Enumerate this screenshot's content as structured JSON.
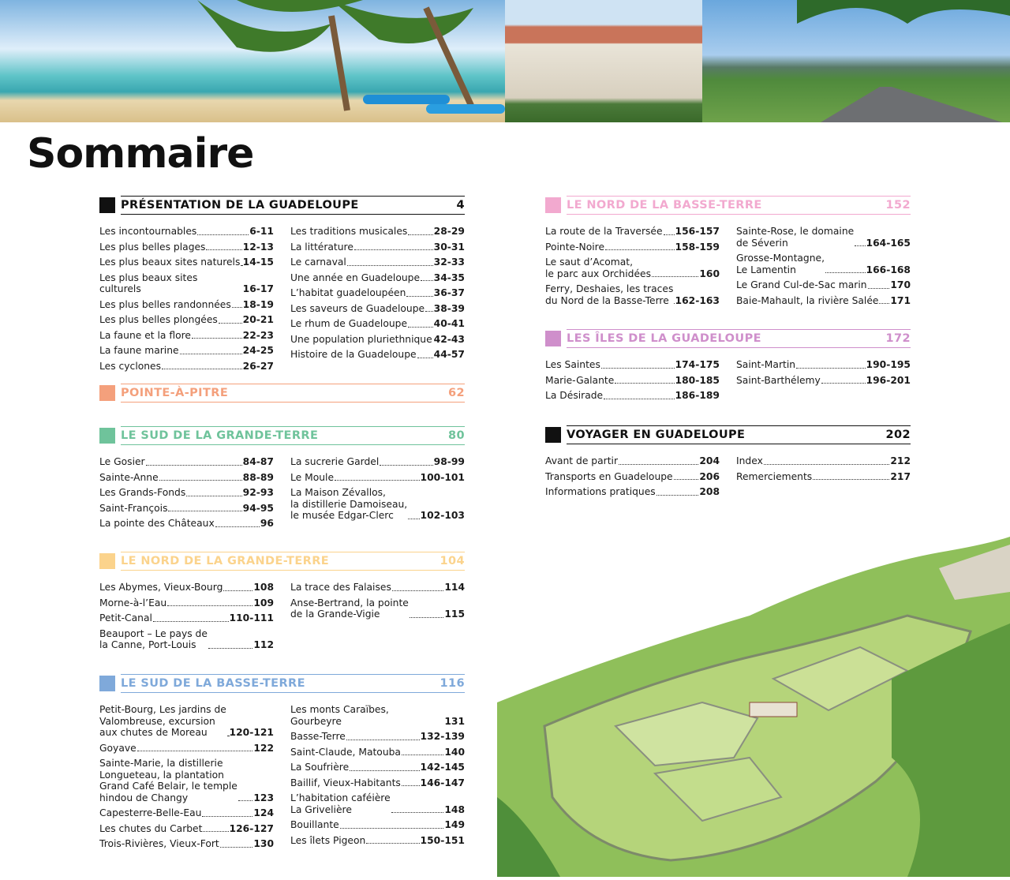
{
  "title": "Sommaire",
  "sections": [
    {
      "id": "presentation",
      "title": "PRÉSENTATION DE LA GUADELOUPE",
      "page": "4",
      "color": "#111111",
      "left": [
        {
          "t": "Les incontournables",
          "p": "6-11"
        },
        {
          "t": "Les plus belles plages",
          "p": "12-13"
        },
        {
          "t": "Les plus beaux sites naturels",
          "p": "14-15"
        },
        {
          "t": "Les plus beaux sites culturels",
          "p": "16-17"
        },
        {
          "t": "Les plus belles randonnées",
          "p": "18-19"
        },
        {
          "t": "Les plus belles plongées",
          "p": "20-21"
        },
        {
          "t": "La faune et la flore",
          "p": "22-23"
        },
        {
          "t": "La faune marine",
          "p": "24-25"
        },
        {
          "t": "Les cyclones",
          "p": "26-27"
        }
      ],
      "right": [
        {
          "t": "Les traditions musicales",
          "p": "28-29"
        },
        {
          "t": "La littérature",
          "p": "30-31"
        },
        {
          "t": "Le carnaval",
          "p": "32-33"
        },
        {
          "t": "Une année en Guadeloupe",
          "p": "34-35"
        },
        {
          "t": "L’habitat guadeloupéen",
          "p": "36-37"
        },
        {
          "t": "Les saveurs de Guadeloupe",
          "p": "38-39"
        },
        {
          "t": "Le rhum de Guadeloupe",
          "p": "40-41"
        },
        {
          "t": "Une population pluriethnique",
          "p": "42-43"
        },
        {
          "t": "Histoire de la Guadeloupe",
          "p": "44-57"
        }
      ]
    },
    {
      "id": "pointe-a-pitre",
      "title": "POINTE-À-PITRE",
      "page": "62",
      "color": "#f4a07c",
      "left": [],
      "right": []
    },
    {
      "id": "sud-grande-terre",
      "title": "LE SUD DE LA GRANDE-TERRE",
      "page": "80",
      "color": "#6fc39b",
      "left": [
        {
          "t": "Le Gosier",
          "p": "84-87"
        },
        {
          "t": "Sainte-Anne",
          "p": "88-89"
        },
        {
          "t": "Les Grands-Fonds",
          "p": "92-93"
        },
        {
          "t": "Saint-François",
          "p": "94-95"
        },
        {
          "t": "La pointe des Châteaux",
          "p": "96"
        }
      ],
      "right": [
        {
          "t": "La sucrerie Gardel",
          "p": "98-99"
        },
        {
          "t": "Le Moule",
          "p": "100-101"
        },
        {
          "t": "La Maison Zévallos,\nla distillerie Damoiseau,\nle musée Edgar-Clerc",
          "p": "102-103"
        }
      ]
    },
    {
      "id": "nord-grande-terre",
      "title": "LE NORD DE LA GRANDE-TERRE",
      "page": "104",
      "color": "#fbd38c",
      "left": [
        {
          "t": "Les Abymes, Vieux-Bourg",
          "p": "108"
        },
        {
          "t": "Morne-à-l’Eau",
          "p": "109"
        },
        {
          "t": "Petit-Canal",
          "p": "110-111"
        },
        {
          "t": "Beauport – Le pays de\nla Canne, Port-Louis",
          "p": "112"
        }
      ],
      "right": [
        {
          "t": "La trace des Falaises",
          "p": "114"
        },
        {
          "t": "Anse-Bertrand, la pointe\nde la Grande-Vigie",
          "p": "115"
        }
      ]
    },
    {
      "id": "sud-basse-terre",
      "title": "LE SUD DE LA BASSE-TERRE",
      "page": "116",
      "color": "#7fa9da",
      "left": [
        {
          "t": "Petit-Bourg, Les jardins de\nValombreuse, excursion\naux chutes de Moreau",
          "p": "120-121"
        },
        {
          "t": "Goyave",
          "p": "122"
        },
        {
          "t": "Sainte-Marie, la distillerie\nLongueteau, la plantation\nGrand Café Belair, le temple\nhindou de Changy",
          "p": "123"
        },
        {
          "t": "Capesterre-Belle-Eau",
          "p": "124"
        },
        {
          "t": "Les chutes du Carbet",
          "p": "126-127"
        },
        {
          "t": "Trois-Rivières, Vieux-Fort",
          "p": "130"
        }
      ],
      "right": [
        {
          "t": "Les monts Caraïbes, Gourbeyre",
          "p": "131"
        },
        {
          "t": "Basse-Terre",
          "p": "132-139"
        },
        {
          "t": "Saint-Claude, Matouba",
          "p": "140"
        },
        {
          "t": "La Soufrière",
          "p": "142-145"
        },
        {
          "t": "Baillif, Vieux-Habitants",
          "p": "146-147"
        },
        {
          "t": "L’habitation caféière\nLa Grivelière",
          "p": "148"
        },
        {
          "t": "Bouillante",
          "p": "149"
        },
        {
          "t": "Les îlets Pigeon",
          "p": "150-151"
        }
      ]
    },
    {
      "id": "nord-basse-terre",
      "title": "LE NORD DE LA BASSE-TERRE",
      "page": "152",
      "color": "#f2a9cf",
      "left": [
        {
          "t": "La route de la Traversée",
          "p": "156-157"
        },
        {
          "t": "Pointe-Noire",
          "p": "158-159"
        },
        {
          "t": "Le saut d’Acomat,\nle parc aux Orchidées",
          "p": "160"
        },
        {
          "t": "Ferry, Deshaies, les traces\ndu Nord de la Basse-Terre",
          "p": "162-163"
        }
      ],
      "right": [
        {
          "t": "Sainte-Rose, le domaine\nde Séverin",
          "p": "164-165"
        },
        {
          "t": "Grosse-Montagne,\nLe Lamentin",
          "p": "166-168"
        },
        {
          "t": "Le Grand Cul-de-Sac marin",
          "p": "170"
        },
        {
          "t": "Baie-Mahault, la rivière Salée",
          "p": "171"
        }
      ]
    },
    {
      "id": "iles",
      "title": "LES ÎLES DE LA GUADELOUPE",
      "page": "172",
      "color": "#cf8fcb",
      "left": [
        {
          "t": "Les Saintes",
          "p": "174-175"
        },
        {
          "t": "Marie-Galante",
          "p": "180-185"
        },
        {
          "t": "La Désirade",
          "p": "186-189"
        }
      ],
      "right": [
        {
          "t": "Saint-Martin",
          "p": "190-195"
        },
        {
          "t": "Saint-Barthélemy",
          "p": "196-201"
        }
      ]
    },
    {
      "id": "voyager",
      "title": "VOYAGER EN GUADELOUPE",
      "page": "202",
      "color": "#111111",
      "left": [
        {
          "t": "Avant de partir",
          "p": "204"
        },
        {
          "t": "Transports en Guadeloupe",
          "p": "206"
        },
        {
          "t": "Informations pratiques",
          "p": "208"
        }
      ],
      "right": [
        {
          "t": "Index",
          "p": "212"
        },
        {
          "t": "Remerciements",
          "p": "217"
        }
      ]
    }
  ]
}
